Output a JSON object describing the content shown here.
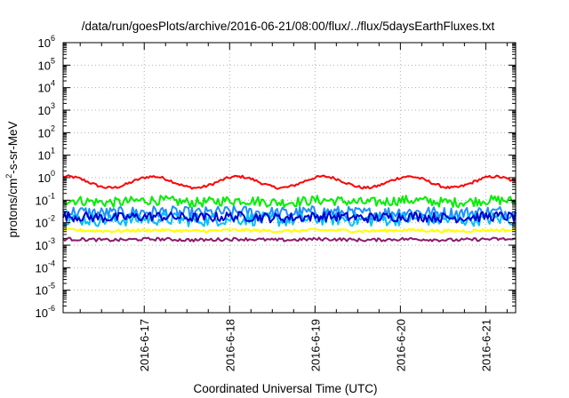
{
  "chart_data": {
    "type": "line",
    "title": "/data/run/goesPlots/archive/2016-06-21/08:00/flux/../flux/5daysEarthFluxes.txt",
    "xlabel": "Coordinated Universal Time (UTC)",
    "ylabel": {
      "prefix": "protons/cm",
      "superscript": "2",
      "suffix": "-s-sr-MeV"
    },
    "x_tick_labels": [
      "2016-6-17",
      "2016-6-18",
      "2016-6-19",
      "2016-6-20",
      "2016-6-21"
    ],
    "xlim_days_from_2016_6_17": [
      -0.95,
      4.35
    ],
    "yscale": "log",
    "ylim_exponent": [
      -6,
      6
    ],
    "y_tick_labels": [
      {
        "base": "10",
        "exp": "-6"
      },
      {
        "base": "10",
        "exp": "-5"
      },
      {
        "base": "10",
        "exp": "-4"
      },
      {
        "base": "10",
        "exp": "-3"
      },
      {
        "base": "10",
        "exp": "-2"
      },
      {
        "base": "10",
        "exp": "-1"
      },
      {
        "base": "10",
        "exp": "0"
      },
      {
        "base": "10",
        "exp": "1"
      },
      {
        "base": "10",
        "exp": "2"
      },
      {
        "base": "10",
        "exp": "3"
      },
      {
        "base": "10",
        "exp": "4"
      },
      {
        "base": "10",
        "exp": "5"
      },
      {
        "base": "10",
        "exp": "6"
      }
    ],
    "grid": true,
    "series": [
      {
        "color": "#ff0000",
        "base_log10": -0.2,
        "amp": 0.25,
        "period_days": 1.0,
        "noise": 0.06
      },
      {
        "color": "#00ee00",
        "base_log10": -1.05,
        "amp": 0.05,
        "period_days": 1.0,
        "noise": 0.22
      },
      {
        "color": "#1e90ff",
        "base_log10": -1.55,
        "amp": 0.03,
        "period_days": 1.0,
        "noise": 0.28
      },
      {
        "color": "#00bfff",
        "base_log10": -1.85,
        "amp": 0.03,
        "period_days": 1.0,
        "noise": 0.3
      },
      {
        "color": "#0000cd",
        "base_log10": -1.75,
        "amp": 0.03,
        "period_days": 1.0,
        "noise": 0.22
      },
      {
        "color": "#ffff00",
        "base_log10": -2.35,
        "amp": 0.02,
        "period_days": 1.0,
        "noise": 0.07
      },
      {
        "color": "#8b1a6b",
        "base_log10": -2.75,
        "amp": 0.02,
        "period_days": 1.0,
        "noise": 0.07
      }
    ]
  }
}
